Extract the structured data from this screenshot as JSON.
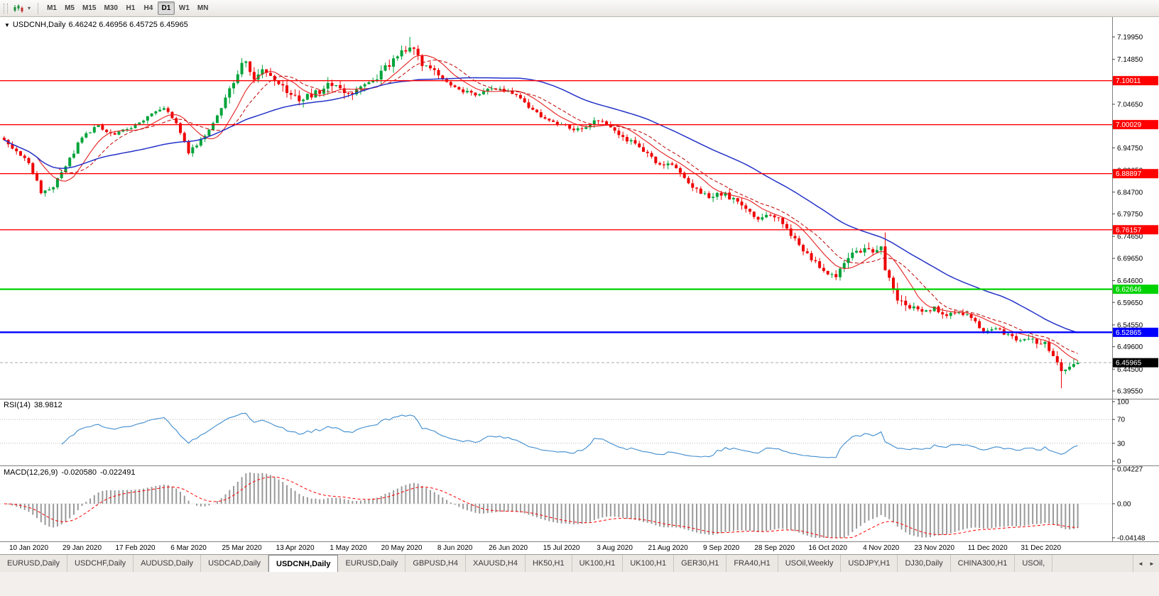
{
  "toolbar": {
    "drag_caret": "▾",
    "timeframes": [
      "M1",
      "M5",
      "M15",
      "M30",
      "H1",
      "H4",
      "D1",
      "W1",
      "MN"
    ],
    "active_timeframe": "D1"
  },
  "chart_header": {
    "collapse_icon": "▼",
    "symbol_title": "USDCNH,Daily",
    "ohlc_text": "6.46242 6.46956 6.45725 6.45965"
  },
  "rsi_panel": {
    "label": "RSI(14)",
    "value": "38.9812",
    "axis_ticks": [
      "100",
      "70",
      "30",
      "0"
    ],
    "levels": [
      70,
      30
    ],
    "line_color": "#3f8cce"
  },
  "macd_panel": {
    "label": "MACD(12,26,9)",
    "value_main": "-0.020580",
    "value_signal": "-0.022491",
    "axis_ticks": [
      "0.04227",
      "0.00",
      "-0.04148"
    ],
    "range": [
      -0.0415,
      0.0423
    ],
    "hist_color": "#999999",
    "signal_color": "#ff0000"
  },
  "chart_data": {
    "type": "candlestick",
    "symbol": "USDCNH",
    "period": "Daily",
    "title": "USDCNH,Daily",
    "current_price": "6.45965",
    "last_close": 6.45965,
    "ylim": [
      6.3955,
      7.1995
    ],
    "y_ticks": [
      "7.19950",
      "7.14850",
      "7.09750",
      "7.04650",
      "6.99550",
      "6.94750",
      "6.89650",
      "6.84700",
      "6.79750",
      "6.74650",
      "6.69650",
      "6.64600",
      "6.59650",
      "6.54550",
      "6.49600",
      "6.44500",
      "6.39550"
    ],
    "x_labels": [
      "10 Jan 2020",
      "29 Jan 2020",
      "17 Feb 2020",
      "6 Mar 2020",
      "25 Mar 2020",
      "13 Apr 2020",
      "1 May 2020",
      "20 May 2020",
      "8 Jun 2020",
      "26 Jun 2020",
      "15 Jul 2020",
      "3 Aug 2020",
      "21 Aug 2020",
      "9 Sep 2020",
      "28 Sep 2020",
      "16 Oct 2020",
      "4 Nov 2020",
      "23 Nov 2020",
      "11 Dec 2020",
      "31 Dec 2020"
    ],
    "bars": 263,
    "first_label_bar": 6,
    "bars_per_label": 13,
    "up_color": "#00a33a",
    "down_color": "#ee0000",
    "close_anchors": [
      [
        0,
        6.962
      ],
      [
        3,
        6.938
      ],
      [
        6,
        6.916
      ],
      [
        9,
        6.848
      ],
      [
        12,
        6.861
      ],
      [
        15,
        6.905
      ],
      [
        19,
        6.972
      ],
      [
        23,
        6.998
      ],
      [
        27,
        6.978
      ],
      [
        31,
        6.992
      ],
      [
        35,
        7.018
      ],
      [
        39,
        7.042
      ],
      [
        42,
        7.002
      ],
      [
        45,
        6.938
      ],
      [
        48,
        6.965
      ],
      [
        51,
        7.005
      ],
      [
        54,
        7.058
      ],
      [
        57,
        7.118
      ],
      [
        59,
        7.148
      ],
      [
        61,
        7.102
      ],
      [
        63,
        7.122
      ],
      [
        66,
        7.095
      ],
      [
        69,
        7.078
      ],
      [
        72,
        7.058
      ],
      [
        76,
        7.072
      ],
      [
        80,
        7.092
      ],
      [
        83,
        7.068
      ],
      [
        86,
        7.078
      ],
      [
        90,
        7.102
      ],
      [
        93,
        7.128
      ],
      [
        96,
        7.158
      ],
      [
        99,
        7.178
      ],
      [
        102,
        7.138
      ],
      [
        105,
        7.118
      ],
      [
        108,
        7.098
      ],
      [
        111,
        7.078
      ],
      [
        115,
        7.068
      ],
      [
        119,
        7.082
      ],
      [
        123,
        7.075
      ],
      [
        126,
        7.062
      ],
      [
        129,
        7.032
      ],
      [
        133,
        7.008
      ],
      [
        137,
        6.996
      ],
      [
        141,
        6.988
      ],
      [
        145,
        7.012
      ],
      [
        148,
        6.996
      ],
      [
        151,
        6.972
      ],
      [
        155,
        6.948
      ],
      [
        159,
        6.918
      ],
      [
        163,
        6.906
      ],
      [
        166,
        6.882
      ],
      [
        169,
        6.852
      ],
      [
        172,
        6.838
      ],
      [
        176,
        6.842
      ],
      [
        180,
        6.818
      ],
      [
        184,
        6.785
      ],
      [
        187,
        6.798
      ],
      [
        190,
        6.778
      ],
      [
        193,
        6.738
      ],
      [
        197,
        6.698
      ],
      [
        200,
        6.668
      ],
      [
        203,
        6.658
      ],
      [
        206,
        6.696
      ],
      [
        209,
        6.716
      ],
      [
        212,
        6.708
      ],
      [
        214,
        6.728
      ],
      [
        215,
        6.672
      ],
      [
        218,
        6.602
      ],
      [
        221,
        6.588
      ],
      [
        224,
        6.572
      ],
      [
        227,
        6.582
      ],
      [
        230,
        6.568
      ],
      [
        233,
        6.578
      ],
      [
        236,
        6.558
      ],
      [
        239,
        6.532
      ],
      [
        242,
        6.538
      ],
      [
        245,
        6.522
      ],
      [
        248,
        6.508
      ],
      [
        251,
        6.512
      ],
      [
        254,
        6.502
      ],
      [
        256,
        6.468
      ],
      [
        258,
        6.442
      ],
      [
        260,
        6.452
      ],
      [
        262,
        6.4597
      ]
    ],
    "wick_spikes": [
      [
        9,
        "low",
        6.8415
      ],
      [
        99,
        "high",
        7.1995
      ],
      [
        215,
        "high",
        6.7555
      ],
      [
        258,
        "low",
        6.4015
      ]
    ],
    "vol_ranges": [
      [
        55,
        105,
        1.8
      ],
      [
        150,
        235,
        1.25
      ],
      [
        205,
        220,
        1.7
      ],
      [
        250,
        262,
        1.5
      ]
    ],
    "price_lines": [
      {
        "label": "7.10011",
        "price": 7.10011,
        "color": "#ff0000",
        "width": 1.4
      },
      {
        "label": "7.00029",
        "price": 7.00029,
        "color": "#ff0000",
        "width": 1.4
      },
      {
        "label": "6.88897",
        "price": 6.88897,
        "color": "#ff0000",
        "width": 1.4
      },
      {
        "label": "6.76157",
        "price": 6.76157,
        "color": "#ff0000",
        "width": 1.4
      },
      {
        "label": "6.62646",
        "price": 6.62646,
        "color": "#00d200",
        "width": 2.2
      },
      {
        "label": "6.52865",
        "price": 6.52865,
        "color": "#0000ff",
        "width": 2.4
      }
    ],
    "moving_averages": [
      {
        "period": 9,
        "color": "#e62020",
        "width": 1.1,
        "dash": ""
      },
      {
        "period": 14,
        "color": "#c00000",
        "width": 1,
        "dash": "5,3"
      },
      {
        "period": 40,
        "color": "#2433c8",
        "width": 1.5,
        "dash": ""
      }
    ],
    "indicators": [
      {
        "name": "RSI(14)",
        "current": 38.9812
      },
      {
        "name": "MACD(12,26,9)",
        "current": [
          -0.02058,
          -0.022491
        ]
      }
    ]
  },
  "tabs": {
    "items": [
      "EURUSD,Daily",
      "USDCHF,Daily",
      "AUDUSD,Daily",
      "USDCAD,Daily",
      "USDCNH,Daily",
      "EURUSD,Daily",
      "GBPUSD,H4",
      "XAUUSD,H4",
      "HK50,H1",
      "UK100,H1",
      "UK100,H1",
      "GER30,H1",
      "FRA40,H1",
      "USOil,Weekly",
      "USDJPY,H1",
      "DJ30,Daily",
      "CHINA300,H1",
      "USOil,"
    ],
    "active_index": 4,
    "scroll_left": "◄",
    "scroll_right": "►"
  }
}
